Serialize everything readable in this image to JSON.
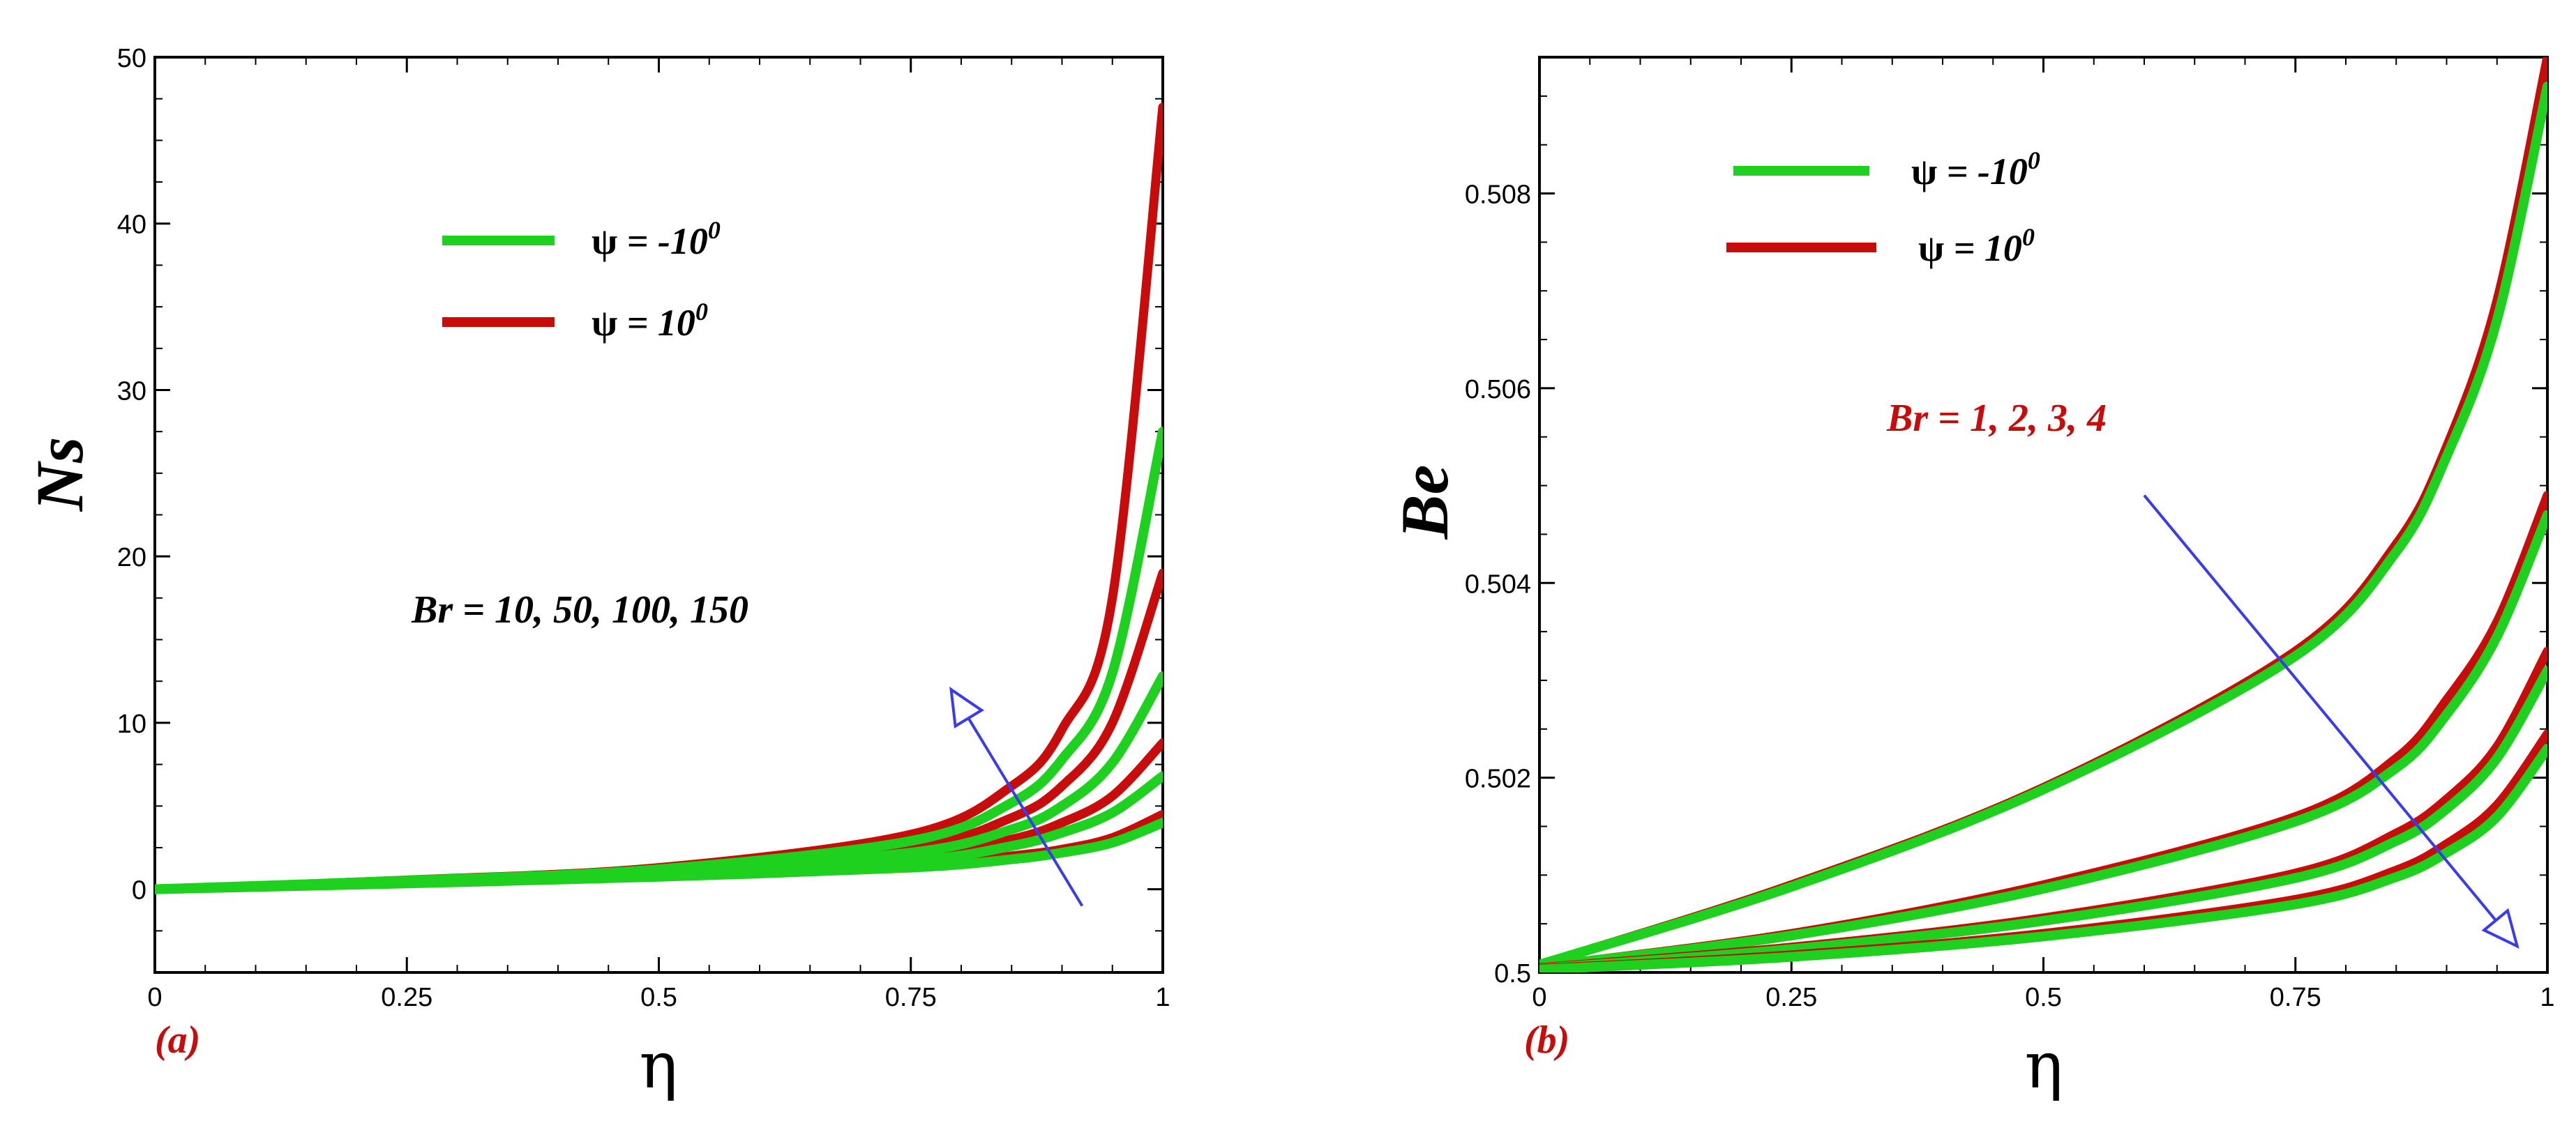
{
  "colors": {
    "green": "#1fd11f",
    "red": "#c80c0c",
    "arrow": "#3a3af0",
    "axis": "#000000"
  },
  "chart_data": [
    {
      "type": "line",
      "panel_label": "(a)",
      "xlabel": "η",
      "ylabel": "Ns",
      "xlim": [
        0,
        1
      ],
      "ylim": [
        -5,
        50
      ],
      "x_ticks": [
        0,
        0.25,
        0.5,
        0.75,
        1
      ],
      "x_tick_labels": [
        "0",
        "0.25",
        "0.5",
        "0.75",
        "1"
      ],
      "y_ticks": [
        0,
        10,
        20,
        30,
        40,
        50
      ],
      "y_tick_labels": [
        "0",
        "10",
        "20",
        "30",
        "40",
        "50"
      ],
      "legend": [
        {
          "symbol": "ψ",
          "label": "= -10",
          "superscript": "0",
          "color": "green"
        },
        {
          "symbol": "ψ",
          "label": "= 10",
          "superscript": "0",
          "color": "red"
        }
      ],
      "annotation": {
        "text": "Br = 10, 50, 100, 150",
        "color": "#000000"
      },
      "arrow": {
        "from": [
          0.92,
          -1
        ],
        "to": [
          0.79,
          12
        ],
        "direction": "increasing Br"
      },
      "series": [
        {
          "name": "ψ = 10⁰, Br = 10",
          "color": "red",
          "x": [
            0,
            0.25,
            0.5,
            0.75,
            0.85,
            0.9,
            0.95,
            1.0
          ],
          "y": [
            0,
            0.4,
            0.8,
            1.4,
            2.0,
            2.4,
            3.1,
            4.5
          ]
        },
        {
          "name": "ψ = -10⁰, Br = 10",
          "color": "green",
          "x": [
            0,
            0.25,
            0.5,
            0.75,
            0.85,
            0.9,
            0.95,
            1.0
          ],
          "y": [
            0,
            0.35,
            0.75,
            1.3,
            1.8,
            2.2,
            2.8,
            4.0
          ]
        },
        {
          "name": "ψ = 10⁰, Br = 50",
          "color": "red",
          "x": [
            0,
            0.25,
            0.5,
            0.75,
            0.85,
            0.9,
            0.95,
            1.0
          ],
          "y": [
            0,
            0.45,
            0.95,
            1.9,
            3.0,
            4.0,
            5.6,
            8.8
          ]
        },
        {
          "name": "ψ = -10⁰, Br = 50",
          "color": "green",
          "x": [
            0,
            0.25,
            0.5,
            0.75,
            0.85,
            0.9,
            0.95,
            1.0
          ],
          "y": [
            0,
            0.42,
            0.9,
            1.7,
            2.6,
            3.4,
            4.6,
            6.8
          ]
        },
        {
          "name": "ψ = 10⁰, Br = 100",
          "color": "red",
          "x": [
            0,
            0.25,
            0.5,
            0.75,
            0.85,
            0.9,
            0.95,
            1.0
          ],
          "y": [
            0,
            0.5,
            1.1,
            2.5,
            4.3,
            6.2,
            10.0,
            19.0
          ]
        },
        {
          "name": "ψ = -10⁰, Br = 100",
          "color": "green",
          "x": [
            0,
            0.25,
            0.5,
            0.75,
            0.85,
            0.9,
            0.95,
            1.0
          ],
          "y": [
            0,
            0.48,
            1.05,
            2.2,
            3.6,
            5.0,
            7.6,
            12.8
          ]
        },
        {
          "name": "ψ = 10⁰, Br = 150",
          "color": "red",
          "x": [
            0,
            0.25,
            0.5,
            0.75,
            0.85,
            0.9,
            0.95,
            1.0
          ],
          "y": [
            0,
            0.55,
            1.3,
            3.3,
            6.2,
            9.6,
            17.5,
            47.0
          ]
        },
        {
          "name": "ψ = -10⁰, Br = 150",
          "color": "green",
          "x": [
            0,
            0.25,
            0.5,
            0.75,
            0.85,
            0.9,
            0.95,
            1.0
          ],
          "y": [
            0,
            0.52,
            1.2,
            2.9,
            5.2,
            7.8,
            13.0,
            27.5
          ]
        }
      ]
    },
    {
      "type": "line",
      "panel_label": "(b)",
      "xlabel": "η",
      "ylabel": "Be",
      "xlim": [
        0,
        1
      ],
      "ylim": [
        0.5,
        0.5094
      ],
      "x_ticks": [
        0,
        0.25,
        0.5,
        0.75,
        1
      ],
      "x_tick_labels": [
        "0",
        "0.25",
        "0.5",
        "0.75",
        "1"
      ],
      "y_ticks": [
        0.5,
        0.502,
        0.504,
        0.506,
        0.508
      ],
      "y_tick_labels": [
        "0.5",
        "0.502",
        "0.504",
        "0.506",
        "0.508"
      ],
      "legend": [
        {
          "symbol": "ψ",
          "label": "= -10",
          "superscript": "0",
          "color": "green"
        },
        {
          "symbol": "ψ",
          "label": "= 10",
          "superscript": "0",
          "color": "red"
        }
      ],
      "annotation": {
        "text": "Br = 1, 2, 3, 4",
        "color": "#c80c0c"
      },
      "arrow": {
        "from": [
          0.6,
          0.5049
        ],
        "to": [
          0.97,
          0.50027
        ],
        "direction": "increasing Br"
      },
      "series": [
        {
          "name": "ψ = 10⁰, Br = 1",
          "color": "red",
          "x": [
            0,
            0.25,
            0.5,
            0.75,
            0.85,
            0.9,
            0.95,
            1.0
          ],
          "y": [
            0.50008,
            0.5009,
            0.5019,
            0.5033,
            0.5044,
            0.5054,
            0.5069,
            0.5094
          ]
        },
        {
          "name": "ψ = -10⁰, Br = 1",
          "color": "green",
          "x": [
            0,
            0.25,
            0.5,
            0.75,
            0.85,
            0.9,
            0.95,
            1.0
          ],
          "y": [
            0.50008,
            0.50088,
            0.50188,
            0.50325,
            0.50432,
            0.5053,
            0.5067,
            0.5091
          ]
        },
        {
          "name": "ψ = 10⁰, Br = 2",
          "color": "red",
          "x": [
            0,
            0.25,
            0.5,
            0.75,
            0.85,
            0.9,
            0.95,
            1.0
          ],
          "y": [
            0.50006,
            0.5004,
            0.5009,
            0.5016,
            0.5022,
            0.5028,
            0.5036,
            0.5049
          ]
        },
        {
          "name": "ψ = -10⁰, Br = 2",
          "color": "green",
          "x": [
            0,
            0.25,
            0.5,
            0.75,
            0.85,
            0.9,
            0.95,
            1.0
          ],
          "y": [
            0.50006,
            0.50038,
            0.50086,
            0.50155,
            0.5021,
            0.50265,
            0.50345,
            0.5047
          ]
        },
        {
          "name": "ψ = 10⁰, Br = 3",
          "color": "red",
          "x": [
            0,
            0.25,
            0.5,
            0.75,
            0.85,
            0.9,
            0.95,
            1.0
          ],
          "y": [
            0.50005,
            0.50026,
            0.50056,
            0.50102,
            0.50143,
            0.50178,
            0.50232,
            0.5033
          ]
        },
        {
          "name": "ψ = -10⁰, Br = 3",
          "color": "green",
          "x": [
            0,
            0.25,
            0.5,
            0.75,
            0.85,
            0.9,
            0.95,
            1.0
          ],
          "y": [
            0.50004,
            0.50024,
            0.50053,
            0.50097,
            0.50135,
            0.50168,
            0.5022,
            0.5031
          ]
        },
        {
          "name": "ψ = 10⁰, Br = 4",
          "color": "red",
          "x": [
            0,
            0.25,
            0.5,
            0.75,
            0.85,
            0.9,
            0.95,
            1.0
          ],
          "y": [
            0.50004,
            0.50018,
            0.5004,
            0.50075,
            0.50105,
            0.50132,
            0.50172,
            0.50245
          ]
        },
        {
          "name": "ψ = -10⁰, Br = 4",
          "color": "green",
          "x": [
            0,
            0.25,
            0.5,
            0.75,
            0.85,
            0.9,
            0.95,
            1.0
          ],
          "y": [
            0.50003,
            0.50016,
            0.50037,
            0.5007,
            0.50098,
            0.50123,
            0.5016,
            0.5023
          ]
        }
      ]
    }
  ]
}
